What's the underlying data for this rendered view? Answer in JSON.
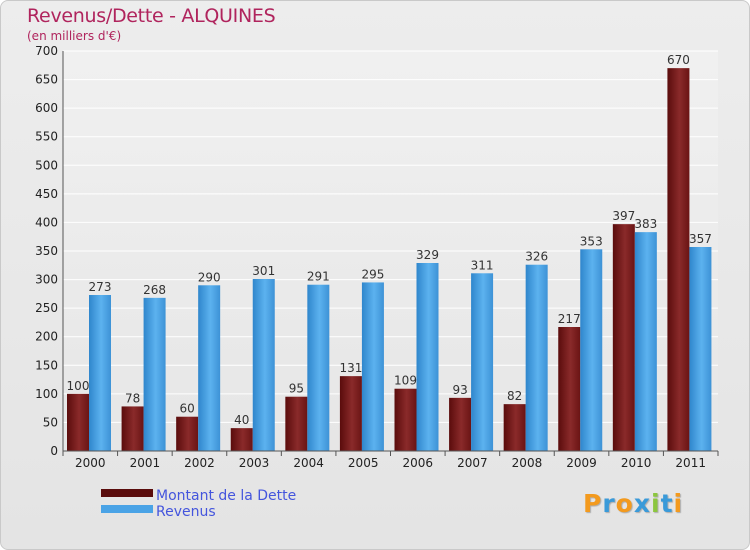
{
  "header": {
    "title": "Revenus/Dette - ALQUINES",
    "subtitle": "(en milliers d'€)"
  },
  "logo": {
    "text": "Proxiti",
    "letter_colors": [
      "#f39a1e",
      "#3a9ad9",
      "#f39a1e",
      "#3a9ad9",
      "#8cc63f",
      "#3a9ad9",
      "#f39a1e"
    ]
  },
  "chart_data": {
    "type": "bar",
    "categories": [
      "2000",
      "2001",
      "2002",
      "2003",
      "2004",
      "2005",
      "2006",
      "2007",
      "2008",
      "2009",
      "2010",
      "2011"
    ],
    "series": [
      {
        "name": "Montant de la Dette",
        "color": "#7a1a1a",
        "values": [
          100,
          78,
          60,
          40,
          95,
          131,
          109,
          93,
          82,
          217,
          397,
          670
        ]
      },
      {
        "name": "Revenus",
        "color": "#4aa3e6",
        "values": [
          273,
          268,
          290,
          301,
          291,
          295,
          329,
          311,
          326,
          353,
          383,
          357
        ]
      }
    ],
    "ylim": [
      0,
      700
    ],
    "yticks": [
      0,
      50,
      100,
      150,
      200,
      250,
      300,
      350,
      400,
      450,
      500,
      550,
      600,
      650,
      700
    ],
    "grid": true,
    "legend_position": "bottom-left"
  }
}
